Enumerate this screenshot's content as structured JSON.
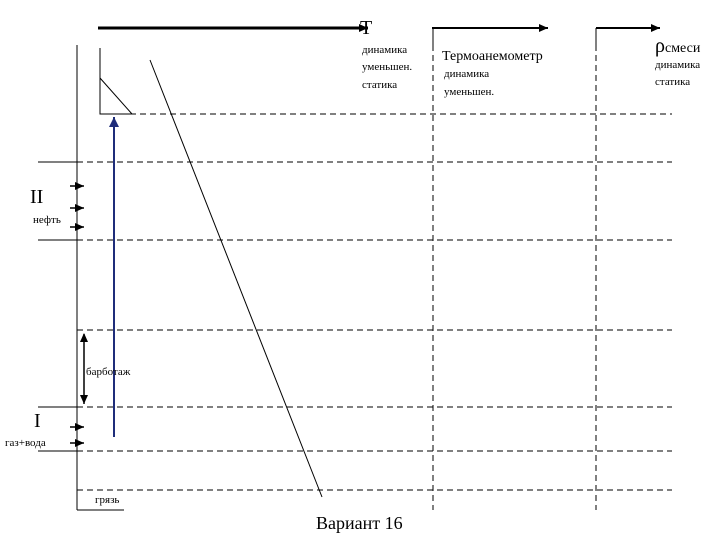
{
  "header": {
    "t_label": "T",
    "t_sub_1": "динамика",
    "t_sub_2": "уменьшен.",
    "t_sub_3": "статика",
    "thermo_label": "Термоанемометр",
    "thermo_sub_1": "динамика",
    "thermo_sub_2": "уменьшен.",
    "rho_symbol": "ρ",
    "rho_sub": "смеси",
    "rho_sub_1": "динамика",
    "rho_sub_2": "статика"
  },
  "zones": {
    "zone_two_numeral": "II",
    "zone_two_label": "нефть",
    "bubbling_label": "барботаж",
    "zone_one_numeral": "I",
    "zone_one_label": "газ+вода",
    "dirt_label": "грязь"
  },
  "footer": {
    "variant_label": "Вариант 16"
  },
  "colors": {
    "line": "#000000",
    "dashed": "#000000",
    "flow_arrow": "#1f2d7a"
  }
}
